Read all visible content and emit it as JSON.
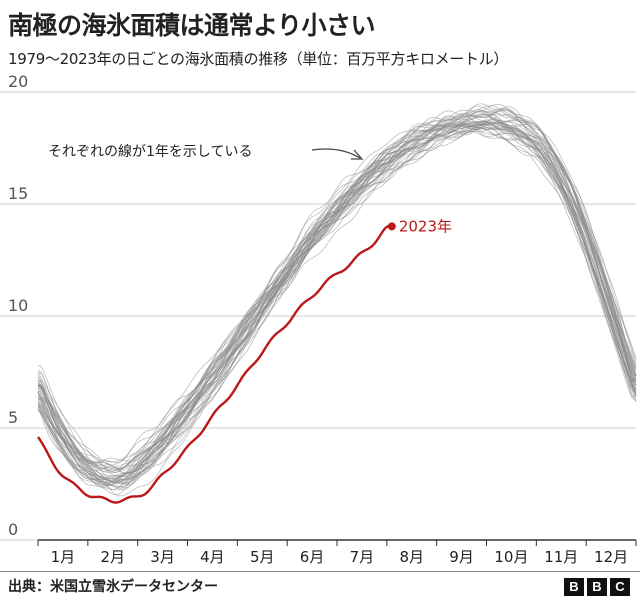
{
  "title": "南極の海氷面積は通常より小さい",
  "subtitle": "1979～2023年の日ごとの海氷面積の推移（単位：百万平方キロメートル）",
  "source": "出典：米国立雪氷データセンター",
  "logo_letters": [
    "B",
    "B",
    "C"
  ],
  "chart_data": {
    "type": "line",
    "ylim": [
      0,
      20
    ],
    "yticks": [
      0,
      5,
      10,
      15,
      20
    ],
    "x_unit": "month",
    "xlim": [
      0,
      12
    ],
    "categories": [
      "1月",
      "2月",
      "3月",
      "4月",
      "5月",
      "6月",
      "7月",
      "8月",
      "9月",
      "10月",
      "11月",
      "12月"
    ],
    "grid": true,
    "annotation": "それぞれの線が1年を示している",
    "series_count_background": 44,
    "colors": {
      "background_years": "#8a8a8a",
      "highlight": "#bb1919",
      "grid": "#cccccc",
      "text": "#222222"
    },
    "background_mean": {
      "x": [
        0,
        0.25,
        0.5,
        0.75,
        1.0,
        1.25,
        1.5,
        1.75,
        2.0,
        2.5,
        3.0,
        3.5,
        4.0,
        4.5,
        5.0,
        5.5,
        6.0,
        6.5,
        7.0,
        7.5,
        8.0,
        8.5,
        9.0,
        9.5,
        10.0,
        10.5,
        11.0,
        11.5,
        12.0
      ],
      "y": [
        6.8,
        5.6,
        4.6,
        3.8,
        3.3,
        2.95,
        2.8,
        2.9,
        3.3,
        4.4,
        5.8,
        7.3,
        8.9,
        10.5,
        12.0,
        13.5,
        14.7,
        15.9,
        16.9,
        17.7,
        18.3,
        18.6,
        18.7,
        18.4,
        17.7,
        16.1,
        13.5,
        10.2,
        6.8
      ]
    },
    "highlight_series": {
      "name": "2023年",
      "x": [
        0,
        0.25,
        0.5,
        0.75,
        1.0,
        1.25,
        1.5,
        1.75,
        2.0,
        2.25,
        2.5,
        3.0,
        3.5,
        4.0,
        4.5,
        5.0,
        5.5,
        6.0,
        6.25,
        6.5,
        6.75,
        7.0,
        7.1
      ],
      "y": [
        4.6,
        3.6,
        2.9,
        2.4,
        2.05,
        1.85,
        1.75,
        1.8,
        1.95,
        2.3,
        2.9,
        4.1,
        5.5,
        6.9,
        8.4,
        9.7,
        10.9,
        11.9,
        12.3,
        12.8,
        13.3,
        13.9,
        14.0
      ]
    }
  }
}
